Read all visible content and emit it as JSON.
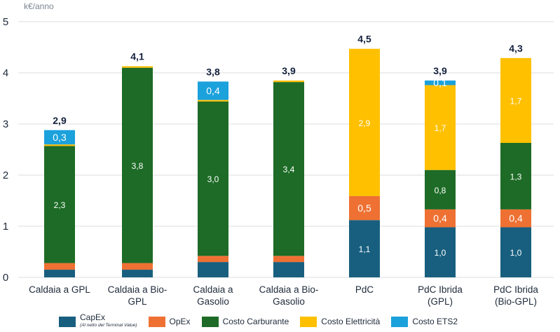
{
  "chart_data": {
    "type": "bar",
    "stacked": true,
    "title": "",
    "xlabel": "",
    "ylabel": "k€/anno",
    "ylim": [
      0,
      5
    ],
    "yticks": [
      "0",
      "1",
      "2",
      "3",
      "4",
      "5"
    ],
    "grid": true,
    "legend_position": "bottom",
    "categories": [
      [
        "Caldaia a GPL"
      ],
      [
        "Caldaia a Bio-",
        "GPL"
      ],
      [
        "Caldaia a",
        "Gasolio"
      ],
      [
        "Caldaia a Bio-",
        "Gasolio"
      ],
      [
        "PdC"
      ],
      [
        "PdC Ibrida",
        "(GPL)"
      ],
      [
        "PdC Ibrida",
        "(Bio-GPL)"
      ]
    ],
    "totals": [
      "2,9",
      "4,1",
      "3,8",
      "3,9",
      "4,5",
      "3,9",
      "4,3"
    ],
    "series": [
      {
        "name": "CapEx",
        "subtitle": "(Al netto del Terminal Value)",
        "color": "#185f7f",
        "values": [
          0.15,
          0.15,
          0.3,
          0.3,
          1.12,
          0.98,
          0.98
        ],
        "labels": [
          "",
          "",
          "",
          "",
          "1,1",
          "1,0",
          "1,0"
        ]
      },
      {
        "name": "OpEx",
        "color": "#ee7133",
        "values": [
          0.13,
          0.13,
          0.12,
          0.12,
          0.47,
          0.35,
          0.35
        ],
        "labels": [
          "",
          "",
          "",
          "",
          "0,5",
          "0,4",
          "0,4"
        ]
      },
      {
        "name": "Costo Carburante",
        "color": "#1d6b26",
        "values": [
          2.29,
          3.82,
          3.02,
          3.4,
          0.0,
          0.77,
          1.3
        ],
        "labels": [
          "2,3",
          "3,8",
          "3,0",
          "3,4",
          "",
          "0,8",
          "1,3"
        ]
      },
      {
        "name": "Costo Elettricità",
        "color": "#ffc000",
        "values": [
          0.03,
          0.03,
          0.03,
          0.03,
          2.88,
          1.66,
          1.66
        ],
        "labels": [
          "",
          "",
          "",
          "",
          "2,9",
          "1,7",
          "1,7"
        ]
      },
      {
        "name": "Costo ETS2",
        "color": "#1ba1dc",
        "values": [
          0.28,
          0.0,
          0.36,
          0.0,
          0.0,
          0.09,
          0.0
        ],
        "labels": [
          "0,3",
          "",
          "0,4",
          "",
          "",
          "0,1",
          ""
        ]
      }
    ]
  }
}
